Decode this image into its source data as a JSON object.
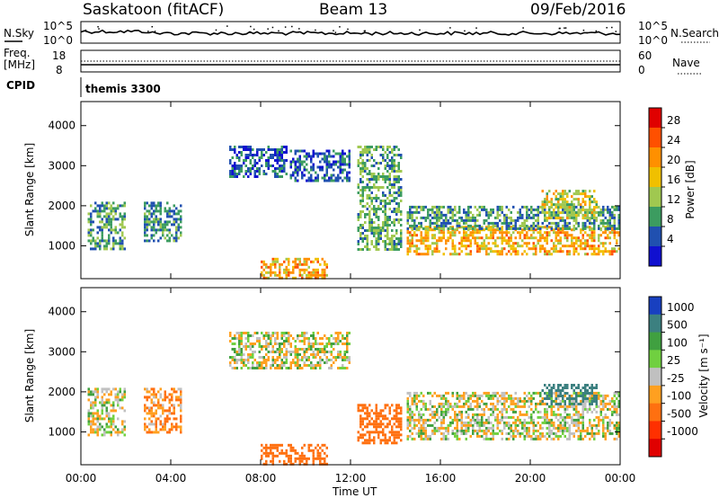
{
  "header": {
    "station": "Saskatoon (fitACF)",
    "beam": "Beam 13",
    "date": "09/Feb/2016"
  },
  "top_panels": {
    "nsky_label": "N.Sky",
    "nsky_ticks": [
      "10^5",
      "10^0"
    ],
    "nsearch_label": "N.Search",
    "nsearch_ticks": [
      "10^5",
      "10^0"
    ],
    "freq_label_1": "Freq.",
    "freq_label_2": "[MHz]",
    "freq_ticks": [
      "18",
      "8"
    ],
    "nave_label": "Nave",
    "nave_ticks": [
      "60",
      "0"
    ],
    "cpid_label": "CPID",
    "cpid_value": "themis 3300"
  },
  "axes": {
    "ylabel": "Slant Range [km]",
    "yticks": [
      "4000",
      "3000",
      "2000",
      "1000"
    ],
    "xlabel": "Time UT",
    "xticks": [
      "00:00",
      "04:00",
      "08:00",
      "12:00",
      "16:00",
      "20:00",
      "00:00"
    ]
  },
  "power_scale": {
    "title": "Power [dB]",
    "ticks": [
      "28",
      "24",
      "20",
      "16",
      "12",
      "8",
      "4"
    ],
    "colors": [
      "#e00000",
      "#ff5000",
      "#ff9000",
      "#f0c000",
      "#a0c850",
      "#3c9c60",
      "#2050b0",
      "#1010d0"
    ]
  },
  "velocity_scale": {
    "title": "Velocity [m s⁻¹]",
    "ticks": [
      "1000",
      "500",
      "100",
      "25",
      "-25",
      "-100",
      "-500",
      "-1000"
    ],
    "colors": [
      "#1840c0",
      "#3c8080",
      "#40a040",
      "#70d040",
      "#c0c0c0",
      "#ffa020",
      "#ff7010",
      "#ff3000",
      "#e00000"
    ]
  },
  "chart_data": [
    {
      "type": "heatmap",
      "panel": "power",
      "x_range_hours": [
        0,
        24
      ],
      "y_range_km": [
        180,
        4600
      ],
      "clusters_hours_km_db": [
        {
          "t": [
            0.3,
            2.0
          ],
          "r": [
            900,
            2100
          ],
          "db": 9
        },
        {
          "t": [
            2.8,
            4.5
          ],
          "r": [
            1100,
            2100
          ],
          "db": 8
        },
        {
          "t": [
            6.6,
            9.2
          ],
          "r": [
            2700,
            3500
          ],
          "db": 5
        },
        {
          "t": [
            9.3,
            12.0
          ],
          "r": [
            2600,
            3400
          ],
          "db": 5
        },
        {
          "t": [
            12.3,
            14.3
          ],
          "r": [
            900,
            3500
          ],
          "db": 10
        },
        {
          "t": [
            8.0,
            11.0
          ],
          "r": [
            200,
            700
          ],
          "db": 18
        },
        {
          "t": [
            14.5,
            24.0
          ],
          "r": [
            800,
            1500
          ],
          "db": 18
        },
        {
          "t": [
            14.5,
            24.0
          ],
          "r": [
            1400,
            2000
          ],
          "db": 9
        },
        {
          "t": [
            20.5,
            23.0
          ],
          "r": [
            1700,
            2400
          ],
          "db": 15
        }
      ]
    },
    {
      "type": "heatmap",
      "panel": "velocity",
      "x_range_hours": [
        0,
        24
      ],
      "y_range_km": [
        180,
        4600
      ],
      "clusters_hours_km_ms": [
        {
          "t": [
            0.3,
            2.0
          ],
          "r": [
            900,
            2100
          ],
          "v": 0
        },
        {
          "t": [
            2.8,
            4.5
          ],
          "r": [
            1000,
            2100
          ],
          "v": -100
        },
        {
          "t": [
            6.6,
            12.0
          ],
          "r": [
            2600,
            3500
          ],
          "v": 0
        },
        {
          "t": [
            8.0,
            11.0
          ],
          "r": [
            200,
            700
          ],
          "v": -300
        },
        {
          "t": [
            12.3,
            14.3
          ],
          "r": [
            700,
            1700
          ],
          "v": -300
        },
        {
          "t": [
            14.5,
            24.0
          ],
          "r": [
            800,
            2000
          ],
          "v": 0
        },
        {
          "t": [
            20.5,
            23.0
          ],
          "r": [
            1700,
            2200
          ],
          "v": 500
        }
      ]
    }
  ]
}
